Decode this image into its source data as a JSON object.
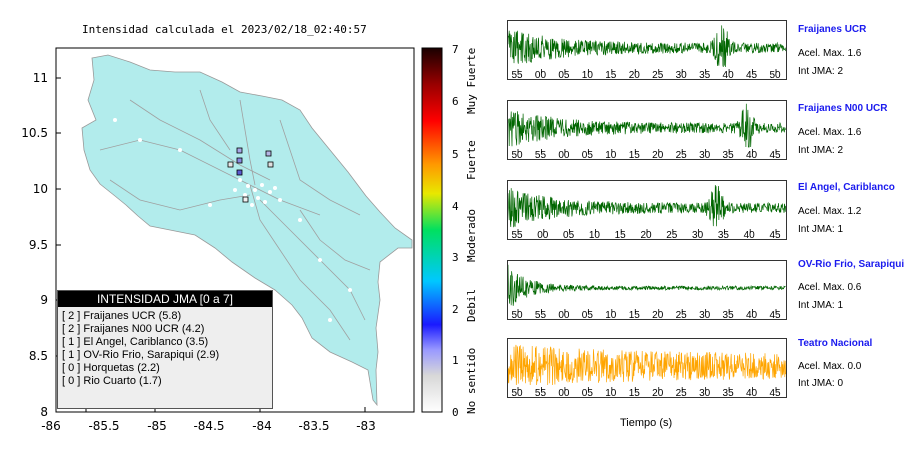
{
  "map": {
    "title": "Intensidad calculada el 2023/02/18_02:40:57",
    "lat_ticks": [
      "11",
      "10.5",
      "10",
      "9.5",
      "9",
      "8.5",
      "8"
    ],
    "lon_ticks": [
      "-86",
      "-85.5",
      "-85",
      "-84.5",
      "-84",
      "-83.5",
      "-83"
    ],
    "land_color": "#b2ecec"
  },
  "legend": {
    "title": "INTENSIDAD JMA [0 a 7]",
    "items": [
      "[ 2 ]  Fraijanes UCR (5.8)",
      "[ 2 ]  Fraijanes N00 UCR (4.2)",
      "[ 1 ]  El Angel, Cariblanco (3.5)",
      "[ 1 ]  OV-Rio Frio, Sarapiqui (2.9)",
      "[ 0 ]  Horquetas (2.2)",
      "[ 0 ]  Rio Cuarto (1.7)"
    ]
  },
  "colorbar": {
    "numbers": [
      "7",
      "6",
      "5",
      "4",
      "3",
      "2",
      "1",
      "0"
    ],
    "labels": [
      "Muy Fuerte",
      "Fuerte",
      "Moderado",
      "Debil",
      "No sentido"
    ]
  },
  "panels": [
    {
      "name": "Fraijanes UCR",
      "acel": "Acel. Max. 1.6",
      "int": "Int JMA: 2",
      "color": "#006600",
      "ticks": [
        "55",
        "00",
        "05",
        "10",
        "15",
        "20",
        "25",
        "30",
        "35",
        "40",
        "45",
        "50"
      ],
      "burst": 0.77
    },
    {
      "name": "Fraijanes N00 UCR",
      "acel": "Acel. Max. 1.6",
      "int": "Int JMA: 2",
      "color": "#006600",
      "ticks": [
        "50",
        "55",
        "00",
        "05",
        "10",
        "15",
        "20",
        "25",
        "30",
        "35",
        "40",
        "45"
      ],
      "burst": 0.86
    },
    {
      "name": "El Angel, Cariblanco",
      "acel": "Acel. Max. 1.2",
      "int": "Int JMA: 1",
      "color": "#006600",
      "ticks": [
        "55",
        "00",
        "05",
        "10",
        "15",
        "20",
        "25",
        "30",
        "35",
        "40",
        "45"
      ],
      "burst": 0.75
    },
    {
      "name": "OV-Rio Frio, Sarapiqui",
      "acel": "Acel. Max. 0.6",
      "int": "Int JMA: 1",
      "color": "#006600",
      "ticks": [
        "50",
        "55",
        "00",
        "05",
        "10",
        "15",
        "20",
        "25",
        "30",
        "35",
        "40",
        "45"
      ],
      "burst": 0
    },
    {
      "name": "Teatro Nacional",
      "acel": "Acel. Max. 0.0",
      "int": "Int JMA: 0",
      "color": "#ffa500",
      "ticks": [
        "50",
        "55",
        "00",
        "05",
        "10",
        "15",
        "20",
        "25",
        "30",
        "35",
        "40",
        "45"
      ],
      "burst": 0
    }
  ],
  "xaxis_label": "Tiempo (s)"
}
